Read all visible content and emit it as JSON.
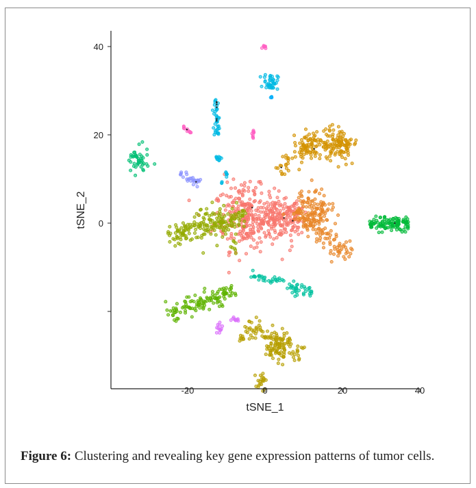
{
  "figure": {
    "label": "Figure 6:",
    "caption": "Clustering and revealing key gene expression patterns of tumor cells."
  },
  "chart_data": {
    "type": "scatter",
    "title": "",
    "xlabel": "tSNE_1",
    "ylabel": "tSNE_2",
    "xlim": [
      -40,
      42
    ],
    "ylim": [
      -38,
      43
    ],
    "x_ticks": [
      -20,
      0,
      20,
      40
    ],
    "y_ticks": [
      0,
      20,
      40
    ],
    "grid": false,
    "legend": "none",
    "clusters": [
      {
        "color": "#F8766D",
        "segments": [
          [
            -12,
            6,
            9,
            0,
            120,
            5
          ],
          [
            -5,
            -2,
            10,
            2,
            60,
            3.5
          ]
        ],
        "blobs": [
          [
            -5,
            1,
            7,
            6,
            180
          ],
          [
            4,
            2,
            6,
            3,
            80
          ]
        ]
      },
      {
        "color": "#E88526",
        "segments": [
          [
            8,
            3,
            22,
            -8,
            110,
            2.5
          ]
        ],
        "blobs": [
          [
            12,
            4,
            3,
            4,
            60
          ],
          [
            14,
            2,
            4,
            3,
            40
          ]
        ]
      },
      {
        "color": "#D39200",
        "segments": [
          [
            3,
            12,
            13,
            17,
            40,
            2.5
          ]
        ],
        "blobs": [
          [
            19,
            18,
            4,
            3,
            120
          ],
          [
            11,
            17,
            3,
            3,
            60
          ]
        ]
      },
      {
        "color": "#B79F00",
        "segments": [
          [
            -5,
            -23,
            10,
            -30,
            80,
            2.5
          ]
        ],
        "blobs": [
          [
            3,
            -28,
            3,
            3,
            70
          ],
          [
            -1,
            -36,
            1,
            1.5,
            20
          ],
          [
            -6,
            -26,
            0.6,
            0.6,
            8
          ]
        ]
      },
      {
        "color": "#93AA00",
        "segments": [
          [
            -25,
            -3,
            -5,
            2,
            140,
            2.5
          ],
          [
            -8,
            -4,
            -8,
            -7,
            8,
            0.6
          ]
        ],
        "blobs": [
          [
            -14,
            0,
            4,
            3,
            60
          ]
        ]
      },
      {
        "color": "#5EB300",
        "segments": [
          [
            -25,
            -21,
            -8,
            -15,
            120,
            2
          ]
        ],
        "blobs": []
      },
      {
        "color": "#00BA38",
        "segments": [
          [
            27,
            0,
            37,
            0,
            110,
            1.6
          ]
        ],
        "blobs": []
      },
      {
        "color": "#00BF74",
        "segments": [],
        "blobs": [
          [
            -33,
            14,
            2.5,
            2.5,
            45
          ]
        ]
      },
      {
        "color": "#00C19F",
        "segments": [
          [
            -4,
            -12,
            5,
            -13,
            30,
            0.8
          ],
          [
            6,
            -14,
            12,
            -16,
            35,
            1.2
          ]
        ],
        "blobs": []
      },
      {
        "color": "#00B9E3",
        "segments": [
          [
            -12.5,
            20,
            -12.5,
            28,
            35,
            0.8
          ]
        ],
        "blobs": [
          [
            1.5,
            32,
            1.5,
            1.5,
            40
          ],
          [
            -12,
            15,
            0.8,
            1,
            10
          ],
          [
            -10,
            11,
            0.6,
            0.6,
            6
          ],
          [
            -11,
            9,
            0.4,
            0.4,
            3
          ]
        ]
      },
      {
        "color": "#00ADFA",
        "segments": [],
        "blobs": [
          [
            1.5,
            28.5,
            0.3,
            0.5,
            3
          ]
        ]
      },
      {
        "color": "#8B93FF",
        "segments": [
          [
            -22,
            11,
            -17,
            9,
            25,
            0.8
          ]
        ],
        "blobs": []
      },
      {
        "color": "#DB72FB",
        "segments": [],
        "blobs": [
          [
            -8,
            -22,
            1,
            0.6,
            10
          ],
          [
            -12,
            -24,
            0.8,
            1,
            12
          ]
        ]
      },
      {
        "color": "#FF61C3",
        "segments": [
          [
            -21,
            22,
            -19,
            20,
            10,
            0.4
          ],
          [
            -3,
            21,
            -3,
            19,
            10,
            0.4
          ]
        ],
        "blobs": [
          [
            0,
            40,
            0.6,
            0.4,
            8
          ]
        ]
      }
    ]
  }
}
